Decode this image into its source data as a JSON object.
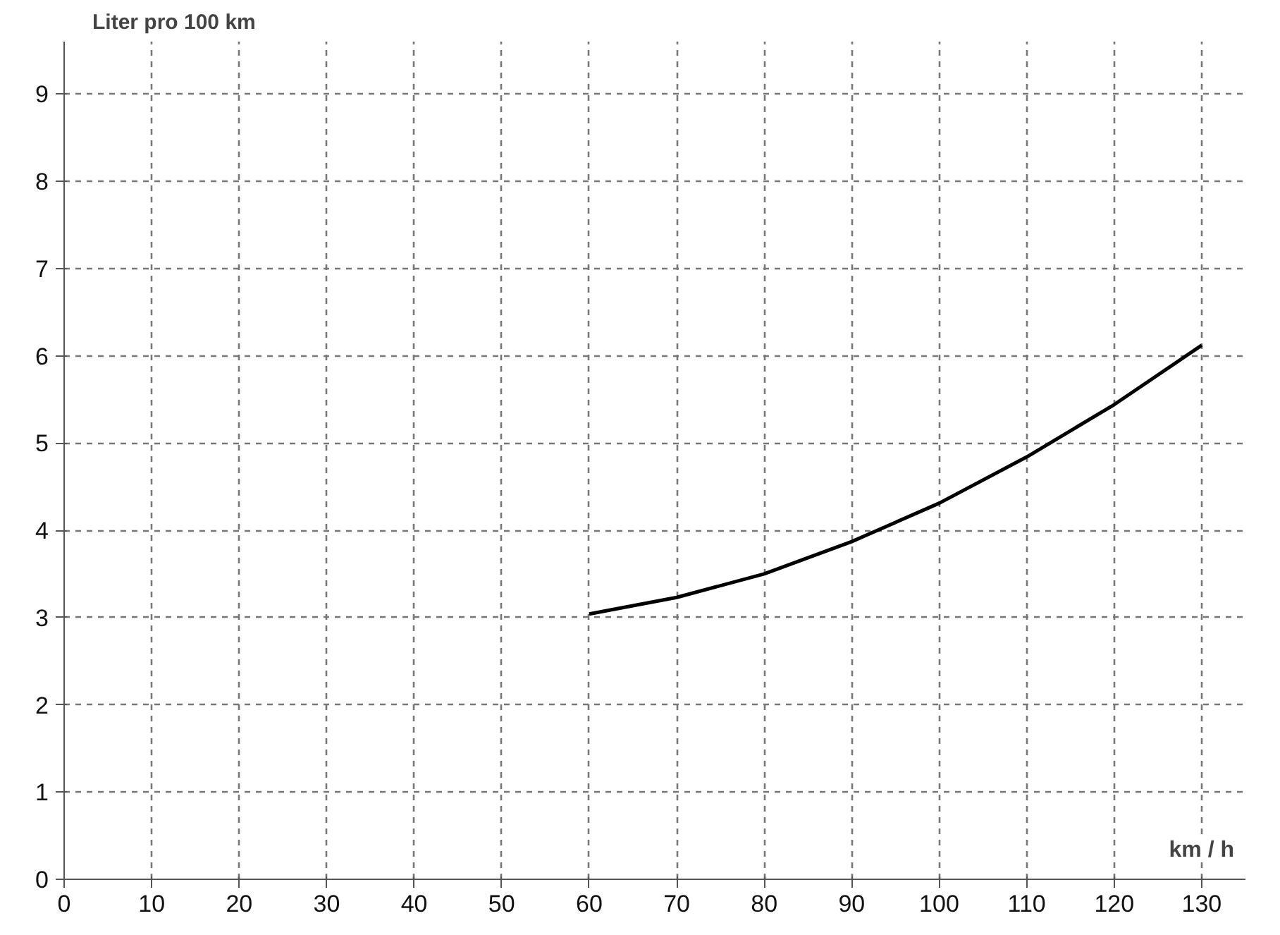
{
  "chart_data": {
    "type": "line",
    "xlabel": "km / h",
    "ylabel": "Liter pro 100 km",
    "x": [
      60,
      70,
      80,
      90,
      100,
      110,
      120,
      130
    ],
    "series": [
      {
        "color": "#000000",
        "values": [
          3.04,
          3.23,
          3.5,
          3.87,
          4.31,
          4.84,
          5.44,
          6.12
        ]
      }
    ],
    "xlim": [
      0,
      135
    ],
    "ylim": [
      0,
      9.6
    ],
    "xticks": [
      0,
      10,
      20,
      30,
      40,
      50,
      60,
      70,
      80,
      90,
      100,
      110,
      120,
      130
    ],
    "yticks": [
      0,
      1,
      2,
      3,
      4,
      5,
      6,
      7,
      8,
      9
    ],
    "grid": true,
    "marker": "none",
    "line_style": "solid"
  }
}
